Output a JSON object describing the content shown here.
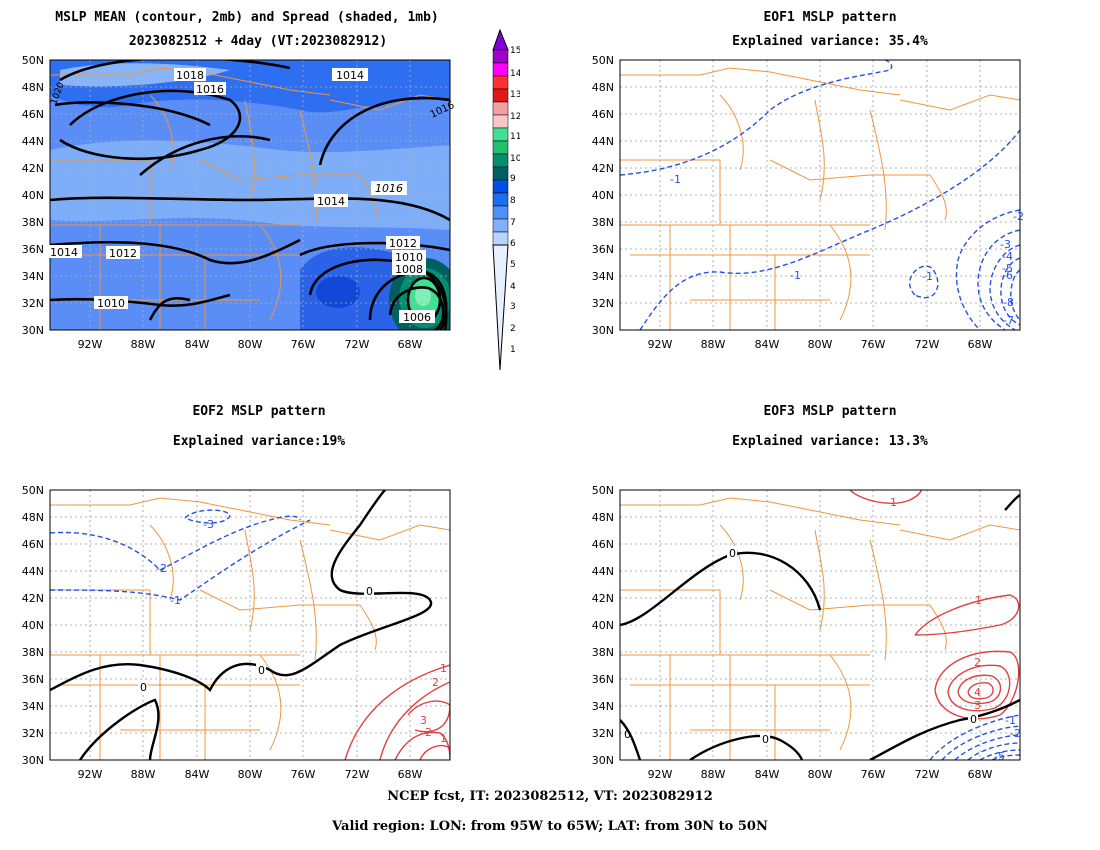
{
  "panels": [
    {
      "id": "mean",
      "title": "MSLP MEAN (contour, 2mb) and Spread (shaded, 1mb)",
      "subtitle": "2023082512 + 4day (VT:2023082912)"
    },
    {
      "id": "eof1",
      "title": "EOF1 MSLP pattern",
      "subtitle": "Explained variance: 35.4%"
    },
    {
      "id": "eof2",
      "title": "EOF2 MSLP pattern",
      "subtitle": "Explained variance:19%"
    },
    {
      "id": "eof3",
      "title": "EOF3 MSLP pattern",
      "subtitle": "Explained variance: 13.3%"
    }
  ],
  "axes": {
    "lon_ticks": [
      "92W",
      "88W",
      "84W",
      "80W",
      "76W",
      "72W",
      "68W"
    ],
    "lat_ticks": [
      "50N",
      "48N",
      "46N",
      "44N",
      "42N",
      "40N",
      "38N",
      "36N",
      "34N",
      "32N",
      "30N"
    ]
  },
  "colorbar": {
    "labels": [
      "15",
      "14",
      "13",
      "12",
      "11",
      "10",
      "9",
      "8",
      "7",
      "6",
      "5",
      "4",
      "3",
      "2",
      "1"
    ],
    "colors": [
      "#a000c8",
      "#ff00ff",
      "#ff3030",
      "#e01818",
      "#f0a0a0",
      "#f8c8c8",
      "#40e090",
      "#20c070",
      "#00906e",
      "#006060",
      "#0050e0",
      "#1e6ef0",
      "#5090f8",
      "#80b0fa",
      "#b8d4ff"
    ]
  },
  "mean_contour_labels": [
    "1018",
    "1016",
    "1014",
    "1014",
    "1016",
    "1014",
    "1014",
    "1012",
    "1012",
    "1010",
    "1008",
    "1010",
    "1006",
    "1020",
    "1016"
  ],
  "eof1_labels": [
    "-1",
    "-1",
    "-1",
    "-2",
    "-3",
    "-4",
    "-5",
    "-6",
    "-8",
    "-7"
  ],
  "eof2_labels": [
    "-3",
    "-2",
    "-1",
    "0",
    "0",
    "0",
    "1",
    "2",
    "3",
    "2",
    "1"
  ],
  "eof3_labels": [
    "1",
    "0",
    "1",
    "2",
    "3",
    "4",
    "0",
    "0",
    "-1",
    "-2",
    "-5",
    "0"
  ],
  "colors": {
    "state_lines": "#f0963c",
    "grid": "#9a9a9a",
    "positive": "#e04040",
    "negative": "#2850e0",
    "zero": "#000000"
  },
  "footer": {
    "line1": "NCEP fcst, IT: 2023082512, VT: 2023082912",
    "line2": "Valid region: LON: from 95W to 65W; LAT: from 30N to 50N"
  }
}
